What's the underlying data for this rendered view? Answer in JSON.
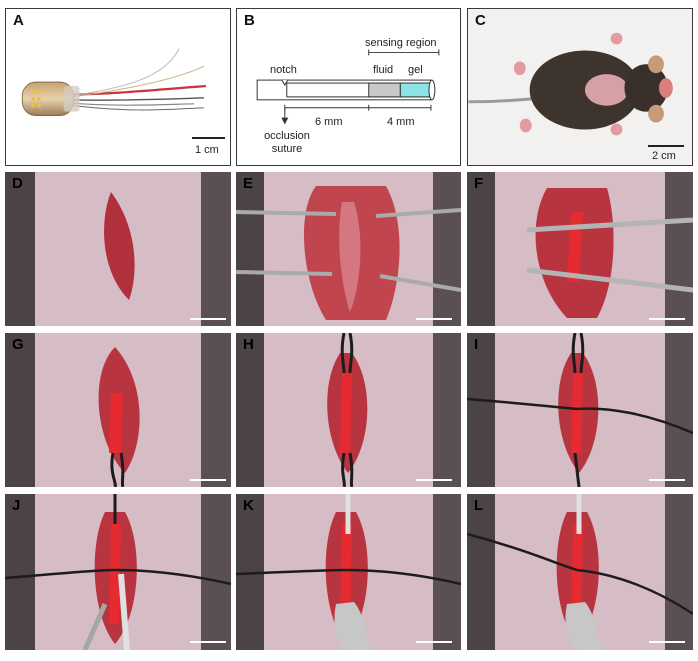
{
  "panels": {
    "A": {
      "label": "A",
      "scale": "1 cm"
    },
    "B": {
      "label": "B",
      "sensing_region": "sensing region",
      "notch": "notch",
      "fluid": "fluid",
      "gel": "gel",
      "dim_1": "6 mm",
      "dim_2": "4 mm",
      "occlusion_1": "occlusion",
      "occlusion_2": "suture"
    },
    "C": {
      "label": "C",
      "scale": "2 cm"
    },
    "D": {
      "label": "D"
    },
    "E": {
      "label": "E"
    },
    "F": {
      "label": "F"
    },
    "G": {
      "label": "G"
    },
    "H": {
      "label": "H"
    },
    "I": {
      "label": "I"
    },
    "J": {
      "label": "J"
    },
    "K": {
      "label": "K"
    },
    "L": {
      "label": "L"
    }
  },
  "colors": {
    "frame": "#3a3a3a",
    "skin": "#d9c0c8",
    "incision": "#b0303e",
    "artery": "#d8262c",
    "suture": "#1c1c1c",
    "gel": "#8ee3e6",
    "fluid": "#c8c8c8"
  }
}
